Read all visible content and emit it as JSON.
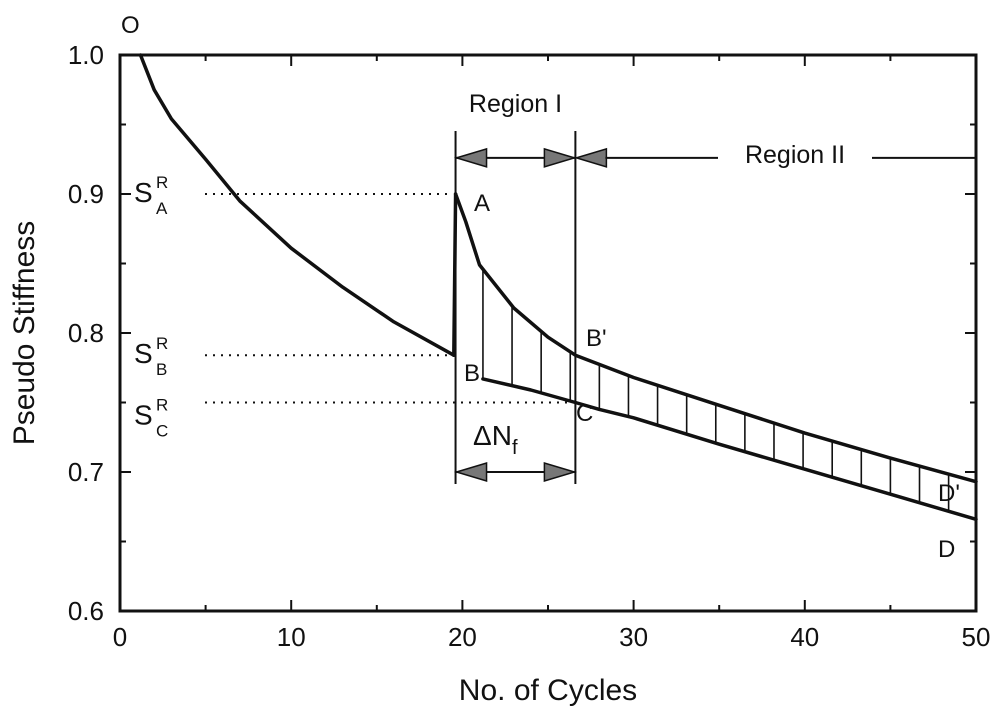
{
  "chart_data": {
    "type": "line",
    "title": "",
    "xlabel": "No. of Cycles",
    "ylabel": "Pseudo Stiffness",
    "xlim": [
      0,
      50
    ],
    "ylim": [
      0.6,
      1.0
    ],
    "x_ticks": [
      "0",
      "10",
      "20",
      "30",
      "40",
      "50"
    ],
    "y_ticks": [
      "0.6",
      "0.7",
      "0.8",
      "0.9",
      "1.0"
    ],
    "x_minor_step": 5,
    "y_minor_step": 0.05,
    "grid": false,
    "legend": null,
    "series": [
      {
        "values": [
          [
            1.2,
            1.0
          ],
          [
            2,
            0.975
          ],
          [
            3,
            0.954
          ],
          [
            5,
            0.925
          ],
          [
            7,
            0.895
          ],
          [
            10,
            0.861
          ],
          [
            13,
            0.833
          ],
          [
            16,
            0.808
          ],
          [
            19.5,
            0.784
          ]
        ]
      },
      {
        "values": [
          [
            19.5,
            0.784
          ],
          [
            19.6,
            0.9
          ]
        ]
      },
      {
        "values": [
          [
            19.6,
            0.9
          ],
          [
            20.2,
            0.88
          ],
          [
            21,
            0.849
          ],
          [
            23,
            0.818
          ],
          [
            25,
            0.797
          ],
          [
            26.6,
            0.784
          ],
          [
            30,
            0.768
          ],
          [
            35,
            0.748
          ],
          [
            40,
            0.728
          ],
          [
            45,
            0.71
          ],
          [
            50,
            0.693
          ]
        ]
      },
      {
        "values": [
          [
            21.2,
            0.767
          ],
          [
            24,
            0.759
          ],
          [
            26.6,
            0.75
          ],
          [
            28,
            0.745
          ],
          [
            30,
            0.739
          ],
          [
            35,
            0.72
          ],
          [
            40,
            0.702
          ],
          [
            45,
            0.684
          ],
          [
            50,
            0.666
          ]
        ]
      }
    ],
    "hatch_x": [
      21.2,
      22.9,
      24.6,
      26.3,
      28.0,
      29.7,
      31.4,
      33.1,
      34.8,
      36.5,
      38.2,
      39.9,
      41.6,
      43.3,
      45.0,
      46.7,
      48.4
    ],
    "annotations": {
      "O": {
        "label": "O",
        "x": 1.2,
        "y": 1.0
      },
      "A": {
        "label": "A",
        "x": 19.6,
        "y": 0.9
      },
      "B": {
        "label": "B",
        "x": 19.5,
        "y": 0.784
      },
      "B_prime": {
        "label": "B'",
        "x": 26.6,
        "y": 0.784
      },
      "C": {
        "label": "C",
        "x": 26.6,
        "y": 0.75
      },
      "D": {
        "label": "D",
        "x": 50,
        "y": 0.666
      },
      "D_prime": {
        "label": "D'",
        "x": 50,
        "y": 0.693
      },
      "SA": {
        "main": "S",
        "sup": "R",
        "sub": "A",
        "y": 0.9
      },
      "SB": {
        "main": "S",
        "sup": "R",
        "sub": "B",
        "y": 0.784
      },
      "SC": {
        "main": "S",
        "sup": "R",
        "sub": "C",
        "y": 0.75
      },
      "region_1": {
        "label": "Region I",
        "x_start": 19.6,
        "x_end": 26.6,
        "y": 0.926
      },
      "region_2": {
        "label": "Region II",
        "x_start": 26.6,
        "x_end": 50,
        "y": 0.926
      },
      "delta_nf": {
        "main": "ΔN",
        "sub": "f",
        "x_start": 19.6,
        "x_end": 26.6,
        "y": 0.7
      },
      "divider_x": [
        19.6,
        26.6
      ]
    }
  }
}
